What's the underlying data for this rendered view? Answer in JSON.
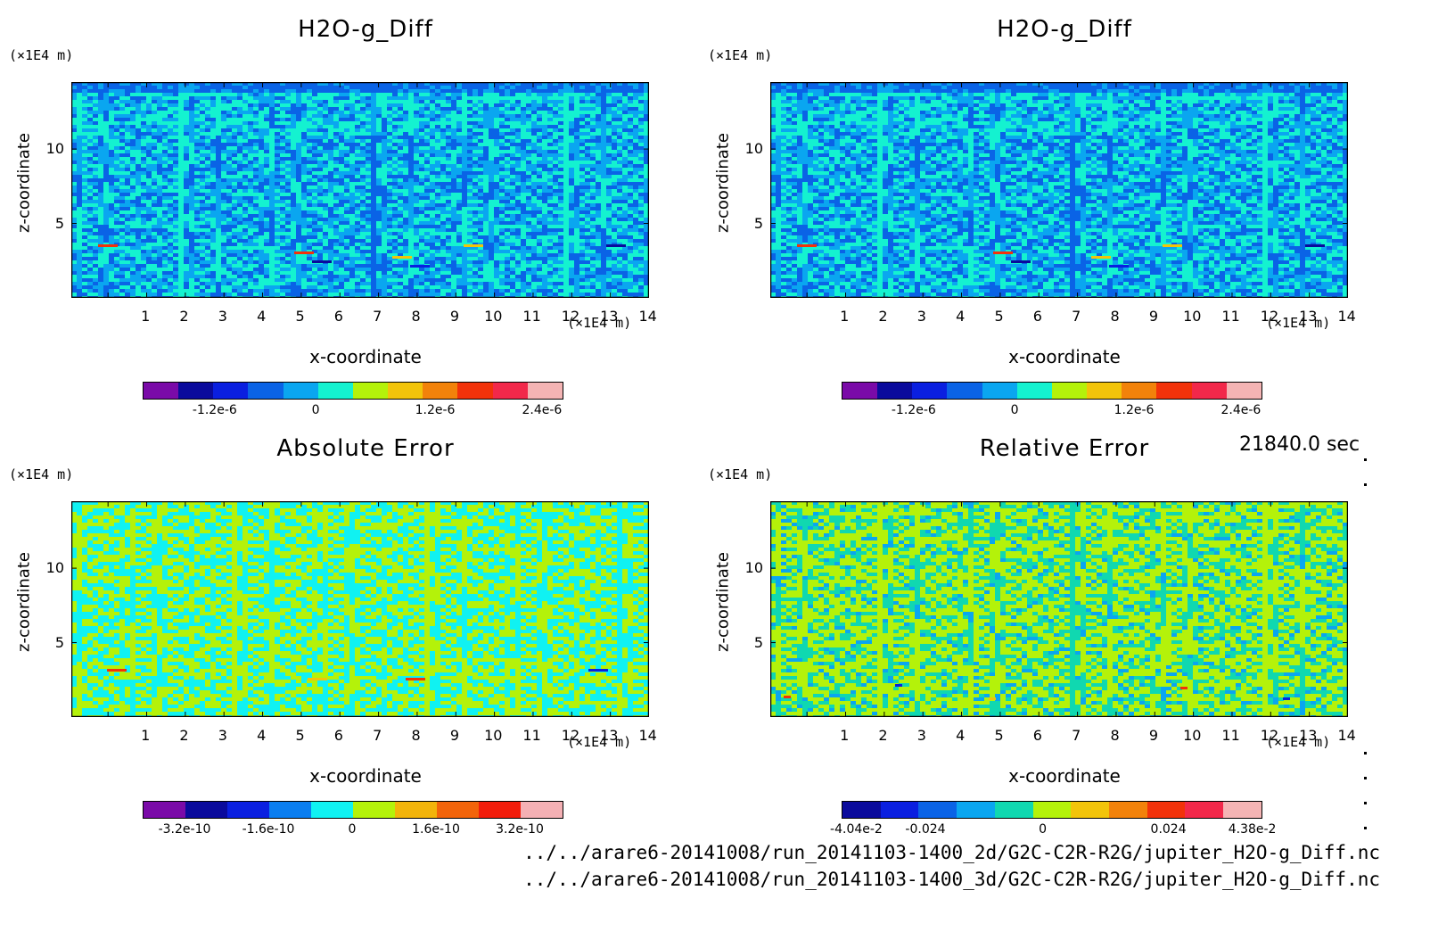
{
  "panels": [
    {
      "title": "H2O-g_Diff",
      "yunit": "(×1E4 m)",
      "xunit": "(×1E4 m)",
      "xlabel": "x-coordinate",
      "ylabel": "z-coordinate",
      "palette": "diff",
      "colorbar": {
        "colors": [
          "#7a0aa8",
          "#0a0a9c",
          "#0a1fe0",
          "#0a63e6",
          "#0aa6f0",
          "#14f2d0",
          "#b4f20a",
          "#f2c40a",
          "#f2820a",
          "#f2320a",
          "#f2284a",
          "#f4b4b4"
        ],
        "labels": [
          "-1.2e-6",
          "0",
          "1.2e-6",
          "2.4e-6"
        ],
        "label_pos": [
          0.172,
          0.413,
          0.698,
          0.953
        ]
      }
    },
    {
      "title": "H2O-g_Diff",
      "yunit": "(×1E4 m)",
      "xunit": "(×1E4 m)",
      "xlabel": "x-coordinate",
      "ylabel": "z-coordinate",
      "palette": "diff",
      "colorbar": {
        "colors": [
          "#7a0aa8",
          "#0a0a9c",
          "#0a1fe0",
          "#0a63e6",
          "#0aa6f0",
          "#14f2d0",
          "#b4f20a",
          "#f2c40a",
          "#f2820a",
          "#f2320a",
          "#f2284a",
          "#f4b4b4"
        ],
        "labels": [
          "-1.2e-6",
          "0",
          "1.2e-6",
          "2.4e-6"
        ],
        "label_pos": [
          0.172,
          0.413,
          0.698,
          0.953
        ]
      }
    },
    {
      "title": "Absolute Error",
      "yunit": "(×1E4 m)",
      "xunit": "(×1E4 m)",
      "xlabel": "x-coordinate",
      "ylabel": "z-coordinate",
      "palette": "abs",
      "colorbar": {
        "colors": [
          "#7a0aa8",
          "#0a0a9c",
          "#0a1fe0",
          "#0a7ef0",
          "#10f2f2",
          "#b4f20a",
          "#f2b40a",
          "#f2640a",
          "#f21c0a",
          "#f4b0b4"
        ],
        "labels": [
          "-3.2e-10",
          "-1.6e-10",
          "0",
          "1.6e-10",
          "3.2e-10"
        ],
        "label_pos": [
          0.1,
          0.3,
          0.5,
          0.7,
          0.9
        ]
      }
    },
    {
      "title": "Relative Error",
      "yunit": "(×1E4 m)",
      "xunit": "(×1E4 m)",
      "xlabel": "x-coordinate",
      "ylabel": "z-coordinate",
      "palette": "rel",
      "colorbar": {
        "colors": [
          "#0a0a9c",
          "#0a1fe0",
          "#0a63e6",
          "#0aa6f0",
          "#10d8b0",
          "#b4f20a",
          "#f2c40a",
          "#f2820a",
          "#f2320a",
          "#f2284a",
          "#f4b4b4"
        ],
        "labels": [
          "-4.04e-2",
          "-0.024",
          "0",
          "0.024",
          "4.38e-2"
        ],
        "label_pos": [
          0.035,
          0.2,
          0.48,
          0.78,
          0.98
        ]
      }
    }
  ],
  "time_label": "21840.0 sec",
  "file_paths": [
    "../../arare6-20141008/run_20141103-1400_2d/G2C-C2R-R2G/jupiter_H2O-g_Diff.nc",
    "../../arare6-20141008/run_20141103-1400_3d/G2C-C2R-R2G/jupiter_H2O-g_Diff.nc"
  ],
  "chart_data": [
    {
      "type": "heatmap",
      "title": "H2O-g_Diff",
      "xlabel": "x-coordinate",
      "ylabel": "z-coordinate",
      "x_unit": "(×1E4 m)",
      "y_unit": "(×1E4 m)",
      "xlim": [
        0,
        15
      ],
      "ylim": [
        0,
        15
      ],
      "x_ticks": [
        1,
        2,
        3,
        4,
        5,
        6,
        7,
        8,
        9,
        10,
        11,
        12,
        13,
        14
      ],
      "y_ticks": [
        5,
        10
      ],
      "color_range": [
        -1.8e-06,
        3e-06
      ],
      "colorbar_ticks": [
        -1.2e-06,
        0,
        1.2e-06,
        2.4e-06
      ]
    },
    {
      "type": "heatmap",
      "title": "H2O-g_Diff",
      "xlabel": "x-coordinate",
      "ylabel": "z-coordinate",
      "x_unit": "(×1E4 m)",
      "y_unit": "(×1E4 m)",
      "xlim": [
        0,
        15
      ],
      "ylim": [
        0,
        15
      ],
      "x_ticks": [
        1,
        2,
        3,
        4,
        5,
        6,
        7,
        8,
        9,
        10,
        11,
        12,
        13,
        14
      ],
      "y_ticks": [
        5,
        10
      ],
      "color_range": [
        -1.8e-06,
        3e-06
      ],
      "colorbar_ticks": [
        -1.2e-06,
        0,
        1.2e-06,
        2.4e-06
      ]
    },
    {
      "type": "heatmap",
      "title": "Absolute Error",
      "xlabel": "x-coordinate",
      "ylabel": "z-coordinate",
      "x_unit": "(×1E4 m)",
      "y_unit": "(×1E4 m)",
      "xlim": [
        0,
        15
      ],
      "ylim": [
        0,
        15
      ],
      "x_ticks": [
        1,
        2,
        3,
        4,
        5,
        6,
        7,
        8,
        9,
        10,
        11,
        12,
        13,
        14
      ],
      "y_ticks": [
        5,
        10
      ],
      "color_range": [
        -4e-10,
        4e-10
      ],
      "colorbar_ticks": [
        -3.2e-10,
        -1.6e-10,
        0,
        1.6e-10,
        3.2e-10
      ]
    },
    {
      "type": "heatmap",
      "title": "Relative Error",
      "xlabel": "x-coordinate",
      "ylabel": "z-coordinate",
      "x_unit": "(×1E4 m)",
      "y_unit": "(×1E4 m)",
      "xlim": [
        0,
        15
      ],
      "ylim": [
        0,
        15
      ],
      "x_ticks": [
        1,
        2,
        3,
        4,
        5,
        6,
        7,
        8,
        9,
        10,
        11,
        12,
        13,
        14
      ],
      "y_ticks": [
        5,
        10
      ],
      "color_range": [
        -0.0404,
        0.0438
      ],
      "colorbar_ticks": [
        -0.0404,
        -0.024,
        0,
        0.024,
        0.0438
      ]
    }
  ]
}
